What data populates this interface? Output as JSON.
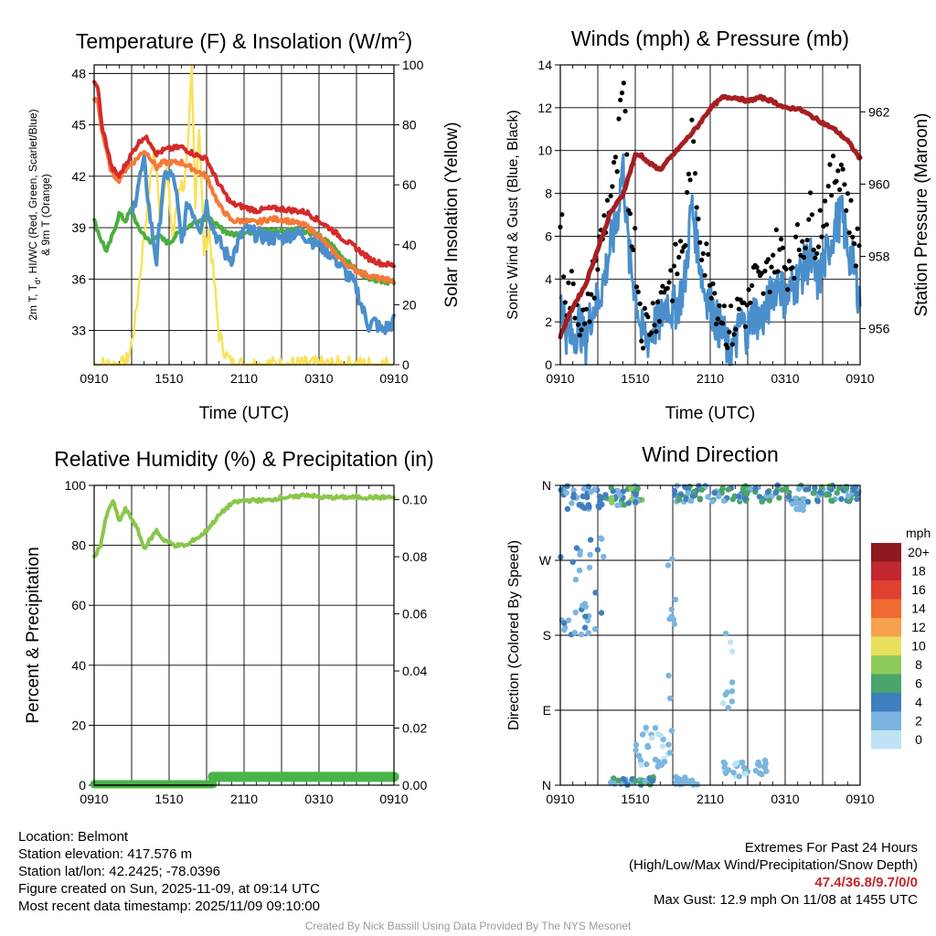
{
  "colors": {
    "red": "#d42a2a",
    "orange": "#f47a3a",
    "green": "#4aae3e",
    "blue": "#4a8fcb",
    "yellow": "#f8e25c",
    "maroon": "#a51e22",
    "black": "#000000",
    "rh": "#8ac64a",
    "precip": "#48b448",
    "extreme": "#c1272d",
    "credit": "#9a9a9a"
  },
  "chart_data": [
    {
      "type": "line",
      "title": "Temperature (F) & Insolation (W/m²)",
      "title_main": "Temperature (F) & Insolation (W/m",
      "title_sup": "2",
      "title_end": ")",
      "xlabel": "Time (UTC)",
      "ylabel_left_line1": "2m T, T",
      "ylabel_left_sub": "d",
      "ylabel_left_rest": ", HI/WC (Red, Green, Scarlet/Blue)",
      "ylabel_left_line2": "& 9m T (Orange)",
      "ylabel_right": "Solar Insolation (Yellow)",
      "x_ticks": [
        "0910",
        "1510",
        "2110",
        "0310",
        "0910"
      ],
      "y_ticks_left": [
        "33",
        "36",
        "39",
        "42",
        "45",
        "48"
      ],
      "y_ticks_right": [
        "0",
        "20",
        "40",
        "60",
        "80",
        "100"
      ],
      "xlim_hours": [
        0,
        24
      ],
      "ylim_left": [
        31,
        48.5
      ],
      "ylim_right": [
        0,
        100
      ],
      "series": [
        {
          "name": "2m T (Red)",
          "color_key": "red",
          "x": [
            0,
            0.3,
            0.6,
            1,
            1.4,
            2,
            2.6,
            3,
            3.5,
            4,
            4.5,
            5,
            5.5,
            6,
            7,
            8,
            9,
            10,
            11,
            12,
            13,
            14,
            15,
            16,
            17,
            18,
            19,
            20,
            21,
            22,
            23,
            24
          ],
          "values": [
            47.4,
            47.2,
            45.0,
            43.8,
            42.5,
            42.0,
            42.8,
            43.3,
            43.9,
            44.3,
            44.0,
            43.3,
            43.5,
            43.6,
            43.7,
            43.3,
            43.0,
            41.5,
            40.4,
            40.2,
            40.0,
            40.1,
            40.1,
            40.0,
            39.9,
            39.4,
            38.9,
            38.3,
            37.8,
            37.2,
            36.9,
            36.8
          ]
        },
        {
          "name": "9m T (Orange)",
          "color_key": "orange",
          "x": [
            0,
            0.3,
            0.6,
            1,
            1.4,
            2,
            2.6,
            3,
            3.5,
            4,
            4.5,
            5,
            5.5,
            6,
            7,
            8,
            9,
            10,
            11,
            12,
            13,
            14,
            15,
            16,
            17,
            18,
            19,
            20,
            21,
            22,
            23,
            24
          ],
          "values": [
            46.5,
            46.3,
            44.8,
            43.4,
            42.2,
            41.8,
            42.5,
            42.7,
            43.1,
            43.5,
            43.1,
            42.5,
            42.8,
            42.8,
            42.8,
            42.4,
            42.0,
            40.3,
            39.4,
            39.4,
            39.3,
            39.5,
            39.5,
            39.3,
            39.1,
            38.5,
            37.7,
            37.0,
            36.5,
            36.2,
            36.0,
            35.9
          ]
        },
        {
          "name": "Td (Green)",
          "color_key": "green",
          "x": [
            0,
            0.5,
            1,
            1.5,
            2,
            2.5,
            3,
            3.5,
            4,
            4.5,
            5,
            5.5,
            6,
            6.5,
            7,
            8,
            9,
            10,
            11,
            12,
            13,
            14,
            15,
            16,
            17,
            18,
            19,
            20,
            21,
            22,
            23,
            24
          ],
          "values": [
            39.4,
            38.4,
            37.6,
            38.6,
            39.8,
            39.4,
            40.1,
            39.0,
            38.6,
            38.1,
            38.6,
            38.3,
            38.1,
            38.5,
            38.8,
            39.3,
            39.6,
            39.0,
            38.6,
            38.7,
            38.8,
            38.8,
            38.8,
            38.9,
            38.8,
            38.5,
            38.0,
            37.2,
            36.5,
            36.1,
            35.9,
            35.8
          ]
        },
        {
          "name": "HI/WC (Scarlet/Blue)",
          "color_key": "blue",
          "x": [
            3,
            3.5,
            4,
            4.5,
            5,
            5.5,
            6,
            6.5,
            7,
            7.5,
            8,
            8.5,
            9,
            9.5,
            10,
            10.5,
            11,
            12,
            13,
            14,
            15,
            16,
            17,
            18,
            19,
            20,
            21,
            21.5,
            22,
            22.5,
            23,
            23.5,
            24
          ],
          "values": [
            39.5,
            41.5,
            42.8,
            39.5,
            37.0,
            41.5,
            42.3,
            41.5,
            38.0,
            40.5,
            39.8,
            39.0,
            40.4,
            39.0,
            38.2,
            37.5,
            37.2,
            38.9,
            38.6,
            38.4,
            38.4,
            38.7,
            38.5,
            38.0,
            37.5,
            36.5,
            35.5,
            34.2,
            33.3,
            33.5,
            33.0,
            33.2,
            33.5
          ]
        },
        {
          "name": "Solar Insolation (Yellow)",
          "color_key": "yellow",
          "axis": "right",
          "x": [
            0,
            2.5,
            2.9,
            3.3,
            3.8,
            4.3,
            4.8,
            5.3,
            5.8,
            6.3,
            6.8,
            7.2,
            7.5,
            7.8,
            8.1,
            8.4,
            8.8,
            9.2,
            9.6,
            10,
            10.6,
            11,
            24
          ],
          "values": [
            0,
            0,
            5,
            15,
            35,
            55,
            72,
            50,
            65,
            42,
            60,
            60,
            70,
            98,
            55,
            80,
            38,
            45,
            28,
            10,
            3,
            0,
            0
          ]
        }
      ]
    },
    {
      "type": "line",
      "title": "Winds (mph) & Pressure (mb)",
      "xlabel": "Time (UTC)",
      "ylabel_left": "Sonic Wind & Gust (Blue, Black)",
      "ylabel_right": "Station Pressure (Maroon)",
      "x_ticks": [
        "0910",
        "1510",
        "2110",
        "0310",
        "0910"
      ],
      "y_ticks_left": [
        "0",
        "2",
        "4",
        "6",
        "8",
        "10",
        "12",
        "14"
      ],
      "y_ticks_right": [
        "956",
        "958",
        "960",
        "962"
      ],
      "xlim_hours": [
        0,
        24
      ],
      "ylim_left": [
        0,
        14
      ],
      "ylim_right": [
        955,
        963.3
      ],
      "series": [
        {
          "name": "Sonic Wind (Blue)",
          "color_key": "blue",
          "x": [
            0,
            0.5,
            1,
            1.5,
            2,
            2.5,
            3,
            3.5,
            4,
            4.5,
            5,
            5.5,
            6,
            6.5,
            7,
            7.5,
            8,
            8.5,
            9,
            9.5,
            10,
            10.5,
            11,
            11.5,
            12,
            12.5,
            13,
            13.5,
            14,
            14.5,
            15,
            15.5,
            16,
            16.5,
            17,
            17.5,
            18,
            18.5,
            19,
            19.5,
            20,
            20.5,
            21,
            21.5,
            22,
            22.5,
            23,
            23.5,
            24
          ],
          "values": [
            3.5,
            1.5,
            1.2,
            2.0,
            1.0,
            2.5,
            3.0,
            4.0,
            5.5,
            6.5,
            9.5,
            5.0,
            3.5,
            1.5,
            1.2,
            1.8,
            2.0,
            3.0,
            2.5,
            3.0,
            4.0,
            7.5,
            5.5,
            3.5,
            3.0,
            2.0,
            1.5,
            0.5,
            1.0,
            2.0,
            1.5,
            2.5,
            2.0,
            2.5,
            3.5,
            4.0,
            3.0,
            3.5,
            4.0,
            4.5,
            5.0,
            3.8,
            4.5,
            5.5,
            6.5,
            7.0,
            5.5,
            4.5,
            3.0
          ]
        },
        {
          "name": "Gust (Black)",
          "color_key": "black",
          "x": [
            0,
            0.5,
            1,
            1.5,
            2,
            2.5,
            3,
            3.5,
            4,
            4.5,
            5,
            5.5,
            6,
            6.5,
            7,
            7.5,
            8,
            8.5,
            9,
            9.5,
            10,
            10.5,
            11,
            11.5,
            12,
            12.5,
            13,
            13.5,
            14,
            14.5,
            15,
            15.5,
            16,
            16.5,
            17,
            17.5,
            18,
            18.5,
            19,
            19.5,
            20,
            20.5,
            21,
            21.5,
            22,
            22.5,
            23,
            23.5,
            24
          ],
          "values": [
            7.0,
            3.0,
            3.5,
            2.5,
            1.5,
            3.5,
            5.0,
            6.5,
            8.0,
            9.0,
            12.9,
            7.5,
            5.5,
            2.0,
            1.8,
            2.5,
            3.0,
            4.0,
            4.0,
            5.0,
            6.0,
            10.5,
            7.5,
            5.0,
            4.5,
            3.0,
            2.5,
            1.5,
            2.0,
            3.0,
            2.5,
            4.0,
            3.5,
            4.0,
            5.0,
            5.5,
            4.5,
            5.0,
            5.5,
            6.0,
            7.0,
            6.0,
            7.0,
            8.0,
            9.0,
            9.5,
            7.5,
            6.0,
            5.0
          ]
        },
        {
          "name": "Station Pressure (Maroon)",
          "color_key": "maroon",
          "axis": "right",
          "x": [
            0,
            1,
            2,
            3,
            4,
            5,
            6,
            6.5,
            7,
            8,
            9,
            10,
            11,
            12,
            13,
            14,
            15,
            16,
            17,
            18,
            19,
            20,
            21,
            22,
            23,
            24
          ],
          "values": [
            955.8,
            956.6,
            957.2,
            958.2,
            959.2,
            959.7,
            960.8,
            960.8,
            960.6,
            960.4,
            960.8,
            961.2,
            961.6,
            962.1,
            962.4,
            962.4,
            962.3,
            962.4,
            962.3,
            962.1,
            962.1,
            961.9,
            961.7,
            961.5,
            961.2,
            960.7
          ]
        }
      ]
    },
    {
      "type": "line",
      "title": "Relative Humidity (%) & Precipitation (in)",
      "xlabel": "",
      "ylabel_left": "Percent & Precipitation",
      "x_ticks": [
        "0910",
        "1510",
        "2110",
        "0310",
        "0910"
      ],
      "y_ticks_left": [
        "0",
        "20",
        "40",
        "60",
        "80",
        "100"
      ],
      "y_ticks_right": [
        "0.00",
        "0.02",
        "0.04",
        "0.06",
        "0.08",
        "0.10"
      ],
      "xlim_hours": [
        0,
        24
      ],
      "ylim_left": [
        0,
        100
      ],
      "ylim_right": [
        0,
        0.105
      ],
      "series": [
        {
          "name": "Relative Humidity",
          "color_key": "rh",
          "x": [
            0,
            0.5,
            1,
            1.5,
            2,
            2.5,
            3,
            3.5,
            4,
            4.5,
            5,
            5.5,
            6,
            6.5,
            7,
            7.5,
            8,
            8.5,
            9,
            10,
            11,
            12,
            13,
            14,
            15,
            16,
            17,
            18,
            19,
            20,
            21,
            22,
            23,
            24
          ],
          "values": [
            76,
            80,
            90,
            95,
            88,
            92,
            89,
            85,
            79,
            82,
            85,
            82,
            81,
            80,
            80,
            80,
            82,
            83,
            85,
            90,
            94,
            95,
            95,
            95,
            96,
            96,
            97,
            96,
            96,
            96,
            96,
            96,
            96,
            96
          ]
        },
        {
          "name": "Precipitation",
          "color_key": "precip",
          "axis": "right",
          "x": [
            0,
            24
          ],
          "values": [
            0.0,
            0.0
          ]
        },
        {
          "name": "Precipitation Accum Bar",
          "color_key": "precip",
          "axis": "left",
          "x": [
            0,
            9.5,
            9.5,
            24
          ],
          "values": [
            0.3,
            0.3,
            2.8,
            2.8
          ]
        }
      ]
    },
    {
      "type": "scatter",
      "title": "Wind Direction",
      "ylabel_left": "Direction (Colored By Speed)",
      "x_ticks": [
        "0910",
        "1510",
        "2110",
        "0310",
        "0910"
      ],
      "y_ticks_left": [
        "N",
        "E",
        "S",
        "W",
        "N"
      ],
      "xlim_hours": [
        0,
        24
      ],
      "ylim_degrees": [
        0,
        360
      ],
      "legend_title": "mph",
      "legend_labels": [
        "20+",
        "18",
        "16",
        "14",
        "12",
        "10",
        "8",
        "6",
        "4",
        "2",
        "0"
      ],
      "legend_colors": [
        "#8e1a1f",
        "#c1272d",
        "#e0402f",
        "#f06a32",
        "#f7a04d",
        "#e8df5a",
        "#8ccb5a",
        "#4aa56a",
        "#3f7fbf",
        "#7bb5df",
        "#bfe3f5"
      ],
      "legend_position": "right",
      "clusters": [
        {
          "x": [
            0,
            3.5
          ],
          "deg": [
            330,
            360
          ],
          "mph": [
            2,
            5
          ]
        },
        {
          "x": [
            0,
            3.5
          ],
          "deg": [
            180,
            300
          ],
          "mph": [
            1,
            4
          ]
        },
        {
          "x": [
            3.5,
            7
          ],
          "deg": [
            335,
            360
          ],
          "mph": [
            2,
            8
          ]
        },
        {
          "x": [
            4,
            7.5
          ],
          "deg": [
            0,
            10
          ],
          "mph": [
            1,
            6
          ]
        },
        {
          "x": [
            6,
            9
          ],
          "deg": [
            20,
            70
          ],
          "mph": [
            0,
            3
          ]
        },
        {
          "x": [
            8.5,
            9.5
          ],
          "deg": [
            90,
            300
          ],
          "mph": [
            1,
            3
          ]
        },
        {
          "x": [
            9,
            16
          ],
          "deg": [
            340,
            360
          ],
          "mph": [
            1,
            7
          ]
        },
        {
          "x": [
            9,
            11
          ],
          "deg": [
            0,
            10
          ],
          "mph": [
            1,
            3
          ]
        },
        {
          "x": [
            13,
            14
          ],
          "deg": [
            90,
            200
          ],
          "mph": [
            0,
            2
          ]
        },
        {
          "x": [
            13,
            15
          ],
          "deg": [
            10,
            30
          ],
          "mph": [
            0,
            3
          ]
        },
        {
          "x": [
            15.5,
            16.5
          ],
          "deg": [
            0,
            30
          ],
          "mph": [
            1,
            3
          ]
        },
        {
          "x": [
            16,
            24
          ],
          "deg": [
            340,
            360
          ],
          "mph": [
            2,
            7
          ]
        },
        {
          "x": [
            18.5,
            19.5
          ],
          "deg": [
            330,
            340
          ],
          "mph": [
            1,
            2
          ]
        }
      ]
    }
  ],
  "footer_left": {
    "location": "Location: Belmont",
    "elevation": "Station elevation: 417.576 m",
    "latlon": "Station lat/lon: 42.2425; -78.0396",
    "created": "Figure created on Sun, 2025-11-09, at 09:14 UTC",
    "recent": "Most recent data timestamp: 2025/11/09 09:10:00"
  },
  "footer_right": {
    "title": "Extremes For Past 24 Hours",
    "subtitle": "(High/Low/Max Wind/Precipitation/Snow Depth)",
    "extremes": "47.4/36.8/9.7/0/0",
    "max_gust": "Max Gust: 12.9 mph On 11/08 at 1455 UTC"
  },
  "credit": "Created By Nick Bassill Using Data Provided By The NYS Mesonet"
}
